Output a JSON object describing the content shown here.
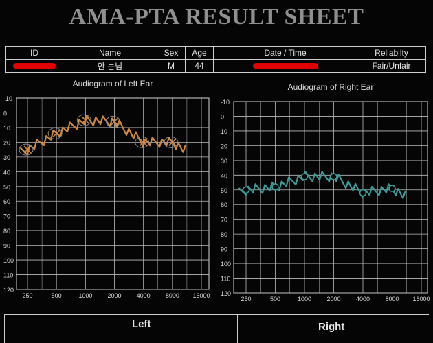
{
  "title": "AMA-PTA RESULT SHEET",
  "info_table": {
    "headers": [
      "ID",
      "Name",
      "Sex",
      "Age",
      "Date / Time",
      "Reliabilty"
    ],
    "values": {
      "name": "안 는님",
      "sex": "M",
      "age": "44",
      "reliability": "Fair/Unfair"
    }
  },
  "charts": {
    "left": {
      "title": "Audiogram of Left Ear",
      "trace_color": "#d08a45",
      "marker_symbol": "X",
      "marker_points": [
        [
          250,
          25
        ],
        [
          500,
          14
        ],
        [
          1000,
          5
        ],
        [
          2000,
          6
        ],
        [
          4000,
          20
        ],
        [
          8000,
          20
        ]
      ]
    },
    "right": {
      "title": "Audiogram of Right Ear",
      "trace_color": "#3d9a98",
      "marker_symbol": "O",
      "marker_points": [
        [
          250,
          50
        ],
        [
          500,
          48
        ],
        [
          1000,
          41
        ],
        [
          2000,
          41
        ],
        [
          4000,
          52
        ],
        [
          8000,
          49
        ]
      ]
    },
    "x_ticks": [
      "250",
      "500",
      "1000",
      "2000",
      "4000",
      "8000",
      "16000"
    ],
    "y_ticks": [
      "-10",
      "0",
      "10",
      "20",
      "30",
      "40",
      "50",
      "60",
      "70",
      "80",
      "90",
      "100",
      "110",
      "120"
    ]
  },
  "chart_data": [
    {
      "type": "line",
      "title": "Audiogram of Left Ear",
      "x": [
        250,
        500,
        1000,
        2000,
        4000,
        8000
      ],
      "series": [
        {
          "values": [
            25,
            14,
            5,
            6,
            20,
            20
          ]
        }
      ],
      "xlabel": "",
      "ylabel": "",
      "ylim": [
        120,
        -10
      ],
      "x_scale": "log2",
      "grid": true
    },
    {
      "type": "line",
      "title": "Audiogram of Right Ear",
      "x": [
        250,
        500,
        1000,
        2000,
        4000,
        8000
      ],
      "series": [
        {
          "values": [
            50,
            48,
            41,
            41,
            52,
            49
          ]
        }
      ],
      "xlabel": "",
      "ylabel": "",
      "ylim": [
        120,
        -10
      ],
      "x_scale": "log2",
      "grid": true
    }
  ],
  "bottom_section": {
    "left_label": "Left",
    "right_label": "Right"
  }
}
